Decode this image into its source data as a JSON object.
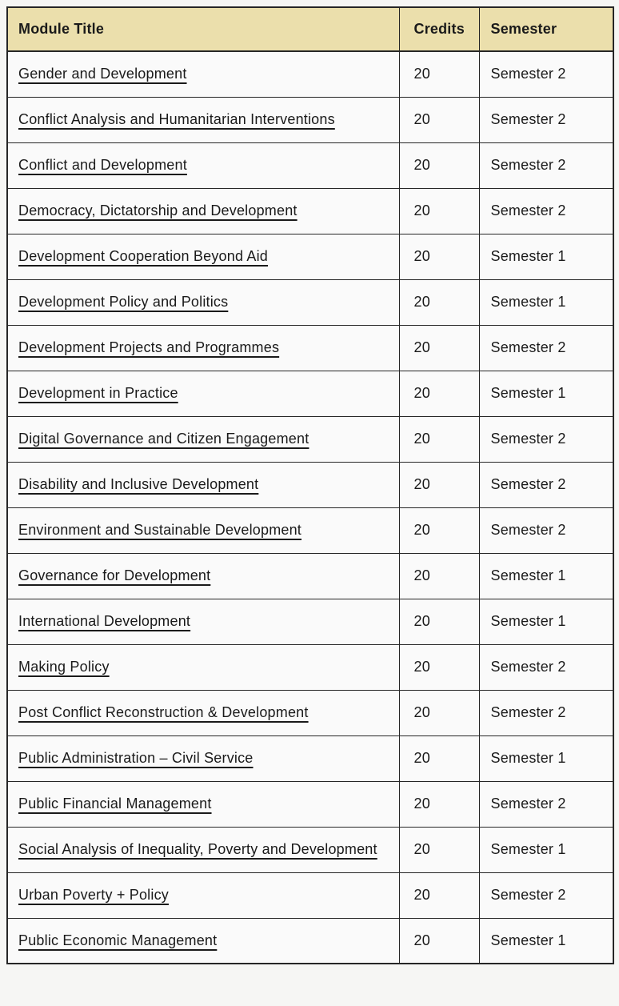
{
  "table": {
    "headers": [
      "Module Title",
      "Credits",
      "Semester"
    ],
    "rows": [
      {
        "module": "Gender and Development",
        "credits": "20",
        "semester": "Semester 2"
      },
      {
        "module": "Conflict Analysis and Humanitarian Interventions",
        "credits": "20",
        "semester": "Semester 2"
      },
      {
        "module": "Conflict and Development",
        "credits": "20",
        "semester": "Semester 2"
      },
      {
        "module": "Democracy, Dictatorship and Development",
        "credits": "20",
        "semester": "Semester 2"
      },
      {
        "module": "Development Cooperation Beyond Aid",
        "credits": "20",
        "semester": "Semester 1"
      },
      {
        "module": "Development Policy and Politics",
        "credits": "20",
        "semester": "Semester 1"
      },
      {
        "module": "Development Projects and Programmes",
        "credits": "20",
        "semester": "Semester 2"
      },
      {
        "module": "Development in Practice",
        "credits": "20",
        "semester": "Semester 1"
      },
      {
        "module": "Digital Governance and Citizen Engagement",
        "credits": "20",
        "semester": "Semester 2"
      },
      {
        "module": "Disability and Inclusive Development",
        "credits": "20",
        "semester": "Semester 2"
      },
      {
        "module": "Environment and Sustainable Development",
        "credits": "20",
        "semester": "Semester 2"
      },
      {
        "module": "Governance for Development",
        "credits": "20",
        "semester": "Semester 1"
      },
      {
        "module": "International Development",
        "credits": "20",
        "semester": "Semester 1"
      },
      {
        "module": "Making Policy",
        "credits": "20",
        "semester": "Semester 2"
      },
      {
        "module": "Post Conflict Reconstruction & Development",
        "credits": "20",
        "semester": "Semester 2"
      },
      {
        "module": "Public Administration – Civil Service",
        "credits": "20",
        "semester": "Semester 1"
      },
      {
        "module": "Public Financial Management",
        "credits": "20",
        "semester": "Semester 2"
      },
      {
        "module": "Social Analysis of Inequality, Poverty and Development",
        "credits": "20",
        "semester": "Semester 1"
      },
      {
        "module": "Urban Poverty + Policy",
        "credits": "20",
        "semester": "Semester 2"
      },
      {
        "module": "Public Economic Management",
        "credits": "20",
        "semester": "Semester 1"
      }
    ],
    "colors": {
      "header_bg": "#ebdfac",
      "cell_bg": "#fafafa",
      "border": "#262626",
      "text": "#1a1a1a",
      "page_bg": "#f6f6f4"
    }
  }
}
